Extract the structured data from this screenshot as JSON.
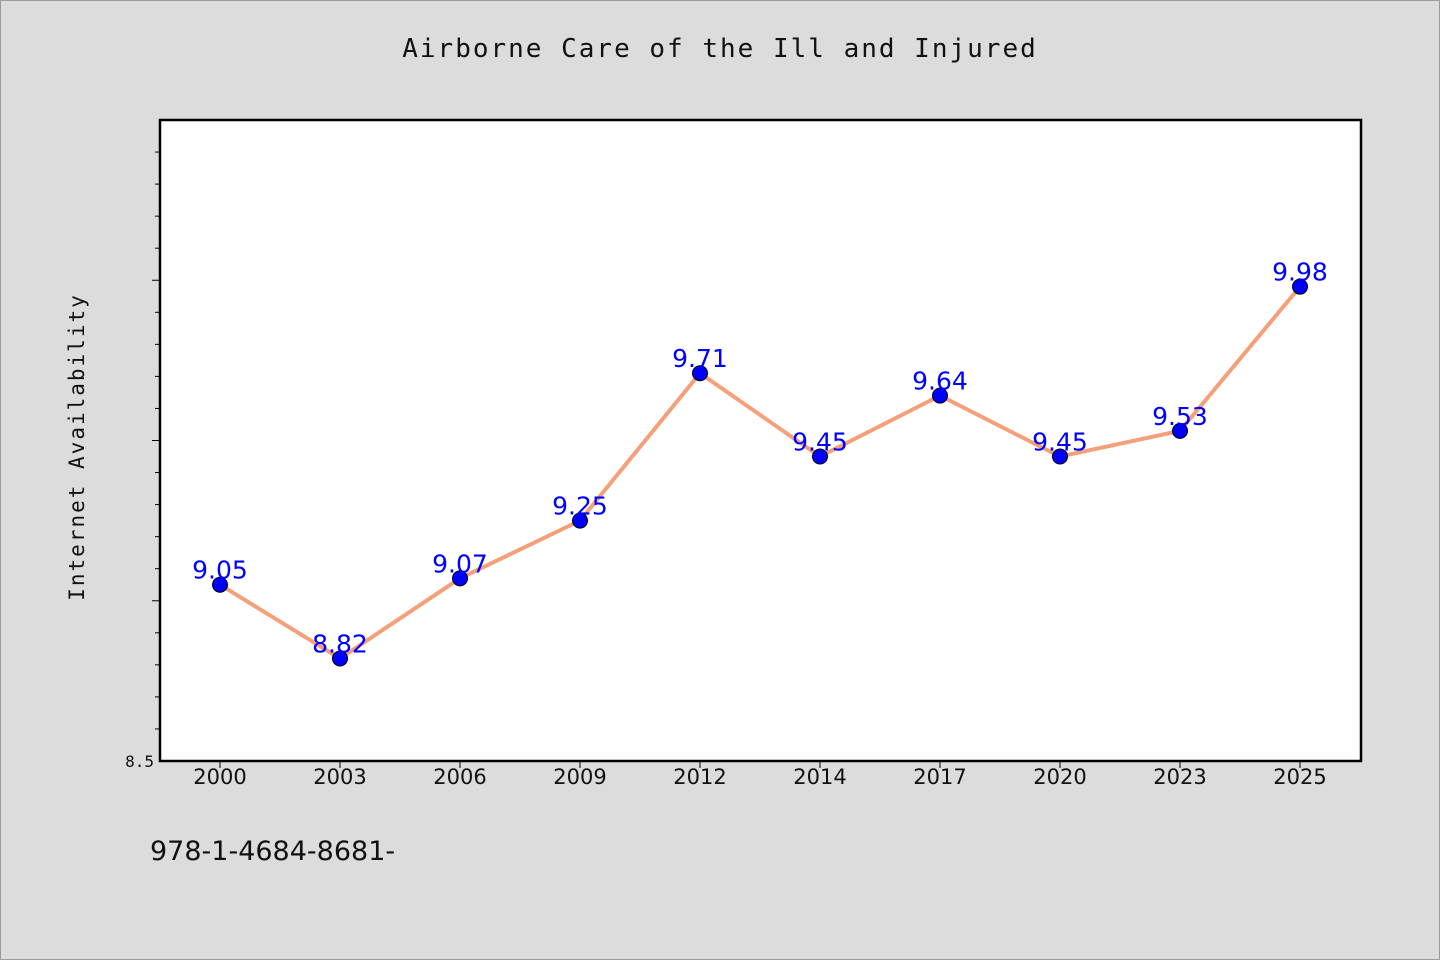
{
  "chart_data": {
    "type": "line",
    "title": "Airborne Care of the Ill and Injured",
    "xlabel": "",
    "ylabel": "Internet Availability",
    "categories": [
      "2000",
      "2003",
      "2006",
      "2009",
      "2012",
      "2014",
      "2017",
      "2020",
      "2023",
      "2025"
    ],
    "series": [
      {
        "values": [
          9.05,
          8.82,
          9.07,
          9.25,
          9.71,
          9.45,
          9.64,
          9.45,
          9.53,
          9.98
        ],
        "data_labels": [
          "9.05",
          "8.82",
          "9.07",
          "9.25",
          "9.71",
          "9.45",
          "9.64",
          "9.45",
          "9.53",
          "9.98"
        ]
      }
    ],
    "ylim": [
      8.5,
      10.5
    ],
    "y_tick_labels": [
      "8.5"
    ],
    "grid": false,
    "line_color": "#f4a07a",
    "marker_color": "#0000ff",
    "label_color": "#0000ff"
  },
  "footer_text": "978-1-4684-8681-"
}
